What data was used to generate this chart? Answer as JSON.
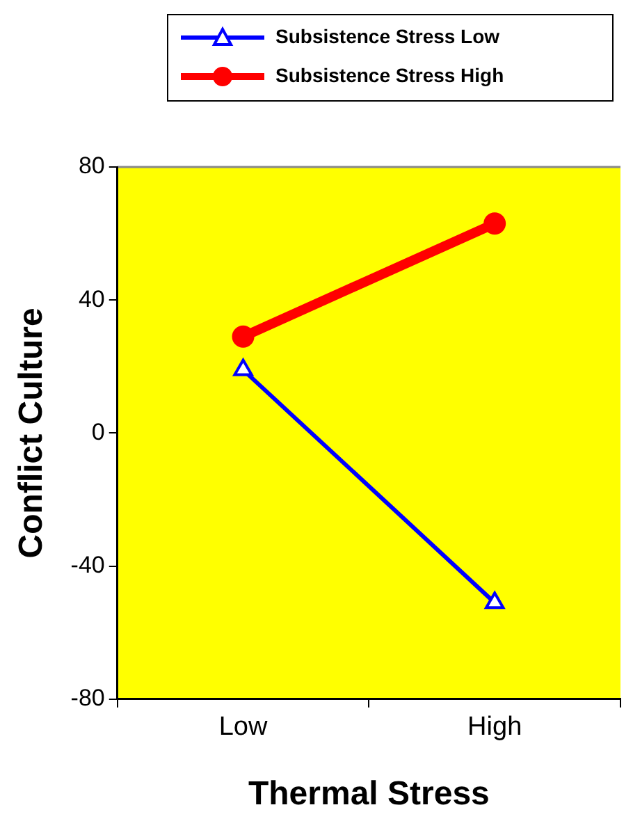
{
  "chart_data": {
    "type": "line",
    "xlabel": "Thermal Stress",
    "ylabel": "Conflict Culture",
    "categories": [
      "Low",
      "High"
    ],
    "ylim": [
      -80,
      80
    ],
    "yticks": [
      -80,
      -40,
      0,
      40,
      80
    ],
    "grid": false,
    "legend": "top",
    "series": [
      {
        "name": "Subsistence Stress Low",
        "color": "#0000ff",
        "values": [
          19,
          -51
        ],
        "marker": "triangle"
      },
      {
        "name": "Subsistence Stress High",
        "color": "#ff0000",
        "values": [
          29,
          63
        ],
        "marker": "circle"
      }
    ]
  }
}
